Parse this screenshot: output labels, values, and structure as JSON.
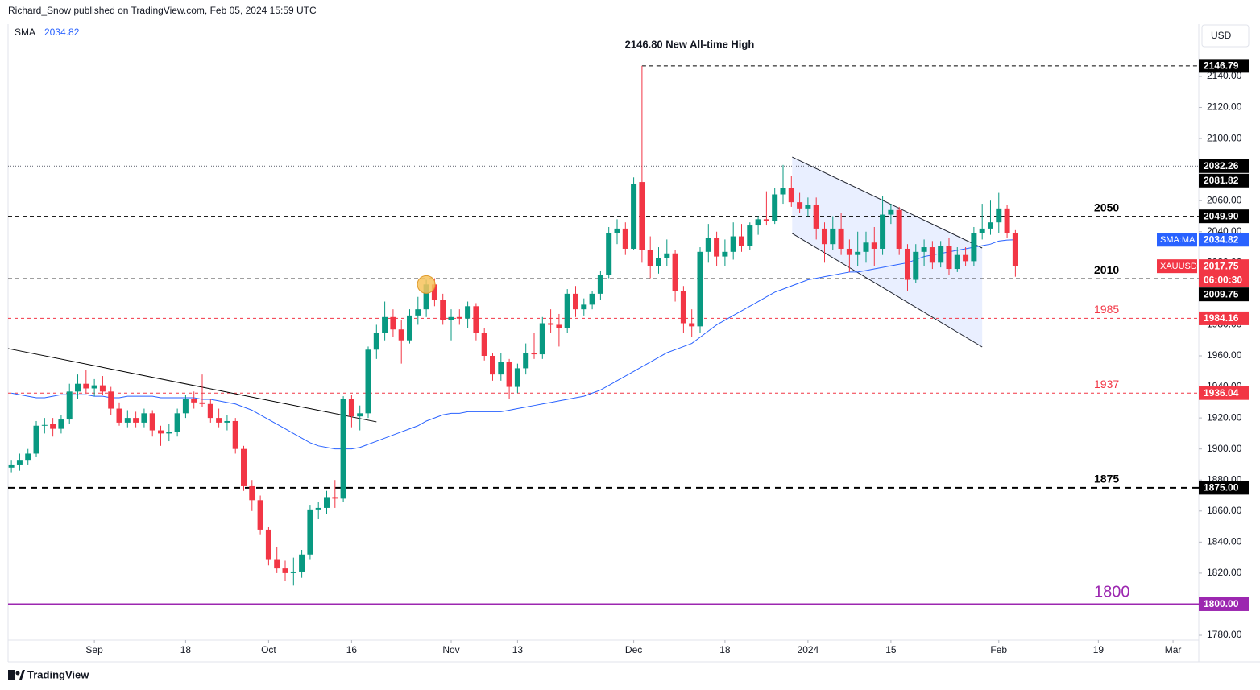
{
  "header": {
    "publisher": "Richard_Snow published on TradingView.com, Feb 05, 2024 15:59 UTC",
    "footer": "TradingView"
  },
  "chart_data": {
    "type": "candlestick",
    "currency": "USD",
    "annotation": "2146.80 New All-time High",
    "countdown": "06:00:30",
    "xlim": [
      -0.4,
      143.1
    ],
    "xticks": [
      {
        "value": 10,
        "label": "Sep"
      },
      {
        "value": 21,
        "label": "18"
      },
      {
        "value": 31,
        "label": "Oct"
      },
      {
        "value": 41,
        "label": "16"
      },
      {
        "value": 53,
        "label": "Nov"
      },
      {
        "value": 61,
        "label": "13"
      },
      {
        "value": 75,
        "label": "Dec"
      },
      {
        "value": 86,
        "label": "18"
      },
      {
        "value": 96,
        "label": "2024"
      },
      {
        "value": 106,
        "label": "15"
      },
      {
        "value": 119,
        "label": "Feb"
      },
      {
        "value": 131,
        "label": "19"
      },
      {
        "value": 140,
        "label": "Mar"
      }
    ],
    "ylim": [
      1776.9,
      2173.7
    ],
    "yticks": [
      {
        "value": 1780,
        "label": "1780.00"
      },
      {
        "value": 1800,
        "label": "1800.00"
      },
      {
        "value": 1820,
        "label": "1820.00"
      },
      {
        "value": 1840,
        "label": "1840.00"
      },
      {
        "value": 1860,
        "label": "1860.00"
      },
      {
        "value": 1880,
        "label": "1880.00"
      },
      {
        "value": 1900,
        "label": "1900.00"
      },
      {
        "value": 1920,
        "label": "1920.00"
      },
      {
        "value": 1940,
        "label": "1940.00"
      },
      {
        "value": 1960,
        "label": "1960.00"
      },
      {
        "value": 1980,
        "label": "1980.00"
      },
      {
        "value": 2000,
        "label": "2000.00"
      },
      {
        "value": 2020,
        "label": "2020.00"
      },
      {
        "value": 2040,
        "label": "2040.00"
      },
      {
        "value": 2060,
        "label": "2060.00"
      },
      {
        "value": 2080,
        "label": "2080.00"
      },
      {
        "value": 2100,
        "label": "2100.00"
      },
      {
        "value": 2120,
        "label": "2120.00"
      },
      {
        "value": 2140,
        "label": "2140.00"
      }
    ],
    "series": [
      {
        "name": "XAUUSD",
        "up_color": "#089981",
        "down_color": "#f23645",
        "last_label": "2017.75",
        "open": [
          1888,
          1890,
          1893,
          1897,
          1915,
          1916,
          1913,
          1919,
          1937,
          1942,
          1939,
          1941,
          1937,
          1926,
          1917,
          1920,
          1917,
          1923,
          1912,
          1910,
          1911,
          1923,
          1932,
          1930,
          1929,
          1920,
          1917,
          1918,
          1900,
          1876,
          1867,
          1848,
          1829,
          1823,
          1820,
          1821,
          1832,
          1861,
          1862,
          1869,
          1868,
          1932,
          1921,
          1923,
          1964,
          1975,
          1985,
          1977,
          1970,
          1986,
          1990,
          2006,
          1996,
          1983,
          1985,
          1984,
          1992,
          1975,
          1960,
          1948,
          1956,
          1940,
          1952,
          1962,
          1961,
          1981,
          1980,
          1978,
          2000,
          1990,
          1993,
          2000,
          2012,
          2039,
          2042,
          2029,
          2072,
          2028,
          2018,
          2023,
          2026,
          2002,
          1981,
          1979,
          2027,
          2036,
          2024,
          2027,
          2037,
          2031,
          2044,
          2048,
          2047,
          2064,
          2068,
          2059,
          2055,
          2057,
          2042,
          2032,
          2042,
          2029,
          2025,
          2027,
          2033,
          2029,
          2051,
          2054,
          2029,
          2009,
          2027,
          2030,
          2020,
          2031,
          2016,
          2025,
          2021,
          2039,
          2042,
          2046,
          2055,
          2039
        ],
        "high": [
          1893,
          1897,
          1900,
          1918,
          1920,
          1920,
          1922,
          1942,
          1948,
          1951,
          1945,
          1947,
          1940,
          1930,
          1925,
          1924,
          1926,
          1925,
          1915,
          1916,
          1926,
          1935,
          1937,
          1948,
          1932,
          1926,
          1922,
          1920,
          1902,
          1880,
          1870,
          1850,
          1837,
          1828,
          1830,
          1835,
          1864,
          1866,
          1873,
          1880,
          1934,
          1935,
          1928,
          1966,
          1980,
          1995,
          1990,
          1983,
          1990,
          1998,
          2009,
          2010,
          2000,
          1990,
          1990,
          1995,
          1994,
          1978,
          1962,
          1962,
          1958,
          1955,
          1968,
          1975,
          1985,
          1990,
          1987,
          2003,
          2005,
          1997,
          2002,
          2015,
          2043,
          2048,
          2046,
          2075,
          2146.79,
          2037,
          2030,
          2035,
          2028,
          2005,
          1990,
          2030,
          2045,
          2040,
          2035,
          2046,
          2045,
          2046,
          2050,
          2066,
          2068,
          2083,
          2076,
          2065,
          2062,
          2062,
          2046,
          2050,
          2052,
          2035,
          2040,
          2040,
          2043,
          2063,
          2058,
          2056,
          2032,
          2032,
          2035,
          2034,
          2034,
          2036,
          2030,
          2030,
          2043,
          2058,
          2060,
          2065,
          2057,
          2041
        ],
        "low": [
          1885,
          1886,
          1890,
          1895,
          1910,
          1908,
          1910,
          1916,
          1932,
          1936,
          1934,
          1935,
          1922,
          1915,
          1914,
          1914,
          1914,
          1908,
          1902,
          1905,
          1908,
          1920,
          1926,
          1927,
          1917,
          1914,
          1912,
          1897,
          1873,
          1860,
          1845,
          1825,
          1820,
          1815,
          1812,
          1817,
          1829,
          1855,
          1858,
          1862,
          1866,
          1914,
          1912,
          1920,
          1958,
          1970,
          1972,
          1955,
          1968,
          1980,
          1985,
          1992,
          1980,
          1970,
          1980,
          1978,
          1970,
          1957,
          1944,
          1944,
          1932,
          1936,
          1948,
          1958,
          1958,
          1975,
          1966,
          1975,
          1985,
          1986,
          1990,
          1996,
          2010,
          2032,
          2025,
          2028,
          2020,
          2010,
          2013,
          2018,
          1995,
          1975,
          1972,
          1975,
          2020,
          2018,
          2018,
          2022,
          2027,
          2028,
          2038,
          2044,
          2045,
          2058,
          2056,
          2052,
          2050,
          2035,
          2020,
          2028,
          2025,
          2014,
          2018,
          2020,
          2018,
          2025,
          2045,
          2025,
          2002,
          2007,
          2018,
          2016,
          2017,
          2012,
          2014,
          2018,
          2018,
          2035,
          2038,
          2039,
          2036,
          2011
        ],
        "close": [
          1890,
          1893,
          1897,
          1915,
          1915.5,
          1913,
          1919,
          1937,
          1942,
          1939,
          1941,
          1937,
          1926,
          1917,
          1920,
          1917,
          1923,
          1912,
          1910,
          1911,
          1923,
          1932,
          1930,
          1929,
          1920,
          1917,
          1918,
          1900,
          1876,
          1867,
          1848,
          1829,
          1823,
          1820,
          1821,
          1832,
          1861,
          1862,
          1869,
          1868,
          1932,
          1921,
          1923,
          1964,
          1975,
          1985,
          1977,
          1970,
          1986,
          1990,
          2006,
          1996,
          1983,
          1985,
          1984,
          1992,
          1975,
          1960,
          1948,
          1956,
          1940,
          1952,
          1962,
          1961,
          1981,
          1980,
          1978,
          2000,
          1990,
          1993,
          2000,
          2012,
          2039,
          2042,
          2029,
          2071,
          2028,
          2018,
          2023,
          2026,
          2002,
          1981,
          1979,
          2027,
          2036,
          2024,
          2027,
          2037,
          2031,
          2044,
          2048,
          2047,
          2064,
          2068,
          2059,
          2055,
          2057,
          2042,
          2032,
          2042,
          2029,
          2025,
          2027,
          2033,
          2029,
          2051,
          2054,
          2029,
          2009,
          2027,
          2030,
          2020,
          2031,
          2016,
          2025,
          2021,
          2039,
          2042,
          2046,
          2055,
          2039,
          2017.75
        ]
      },
      {
        "name": "SMA",
        "tag": "SMA:MA",
        "color": "#2962ff",
        "last_label": "2034.82",
        "values": [
          1936,
          1935,
          1934,
          1933,
          1933,
          1934,
          1935,
          1935,
          1935,
          1935,
          1934,
          1934,
          1933,
          1933,
          1934,
          1934,
          1934,
          1934,
          1933,
          1933,
          1933,
          1933,
          1933,
          1932,
          1932,
          1931,
          1930,
          1929,
          1927,
          1925,
          1922,
          1919,
          1916,
          1913,
          1910,
          1907,
          1904,
          1902,
          1901,
          1900,
          1900,
          1900,
          1901,
          1903,
          1905,
          1907,
          1909,
          1911,
          1913,
          1915,
          1918,
          1920,
          1922,
          1923,
          1923,
          1924,
          1924,
          1924,
          1924,
          1924,
          1925,
          1926,
          1927,
          1928,
          1929,
          1930,
          1931,
          1932,
          1933,
          1934,
          1936,
          1938,
          1941,
          1944,
          1947,
          1950,
          1953,
          1956,
          1959,
          1962,
          1964,
          1966,
          1968,
          1972,
          1976,
          1980,
          1983,
          1986,
          1989,
          1992,
          1995,
          1998,
          2001,
          2003,
          2005,
          2007,
          2009,
          2010,
          2011,
          2012,
          2013,
          2014,
          2014,
          2015,
          2016,
          2017,
          2018,
          2019,
          2020,
          2022,
          2024,
          2025,
          2026,
          2027,
          2028,
          2029,
          2030,
          2031,
          2032,
          2034,
          2034.6,
          2034.82
        ]
      }
    ],
    "levels": [
      {
        "value": 2146.79,
        "label": "2146.79",
        "color": "#000000",
        "dash": "5,4",
        "from": 76
      },
      {
        "value": 2082.26,
        "label": "2082.26",
        "color": "#787b86",
        "dash": "1,2"
      },
      {
        "value": 2081.82,
        "label": "2081.82",
        "color": "#787b86",
        "dash": "1,2"
      },
      {
        "value": 2049.9,
        "label": "2049.90",
        "annotation": "2050",
        "color": "#000000",
        "dash": "5,4"
      },
      {
        "value": 2009.75,
        "label": "2009.75",
        "annotation": "2010",
        "color": "#000000",
        "dash": "5,4"
      },
      {
        "value": 1984.16,
        "label": "1984.16",
        "annotation": "1985",
        "color": "#f23645",
        "dash": "4,4"
      },
      {
        "value": 1936.04,
        "label": "1936.04",
        "annotation": "1937",
        "color": "#f23645",
        "dash": "4,4"
      },
      {
        "value": 1875,
        "label": "1875.00",
        "annotation": "1875",
        "color": "#000000",
        "dash": "8,6"
      },
      {
        "value": 1800,
        "label": "1800.00",
        "annotation": "1800",
        "color": "#9c27b0"
      }
    ],
    "trendlines": [
      {
        "x": [
          -0.4,
          44
        ],
        "y": [
          1964.7,
          1917.5
        ],
        "color": "#000000"
      },
      {
        "x": [
          94.1,
          117
        ],
        "y": [
          2088.1,
          2029.5
        ],
        "color": "#1e222d"
      },
      {
        "x": [
          94.1,
          117
        ],
        "y": [
          2038.9,
          1965.7
        ],
        "color": "#1e222d"
      }
    ],
    "channel_fill": "#2962ff",
    "highlight": {
      "x": 50,
      "y": 2006,
      "color": "#f7c35c"
    }
  }
}
